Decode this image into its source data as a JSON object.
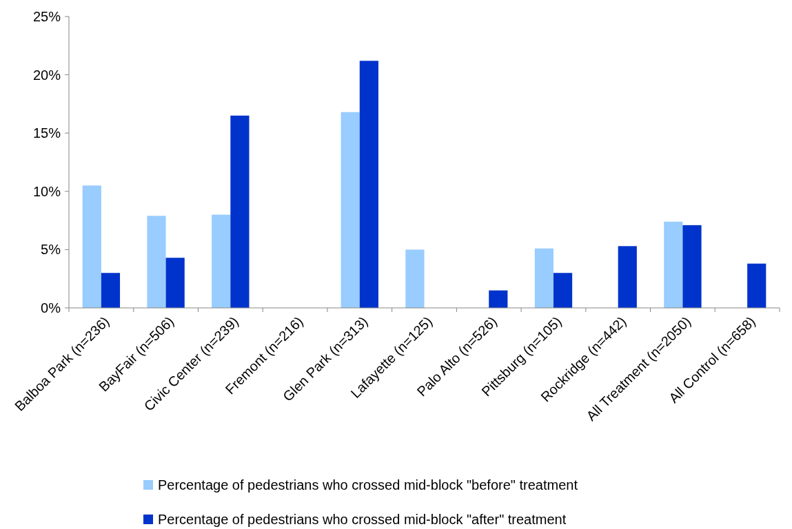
{
  "chart_data": {
    "type": "bar",
    "categories": [
      "Balboa Park (n=236)",
      "BayFair (n=506)",
      "Civic Center (n=239)",
      "Fremont (n=216)",
      "Glen Park (n=313)",
      "Lafayette (n=125)",
      "Palo Alto (n=526)",
      "Pittsburg (n=105)",
      "Rockridge (n=442)",
      "All Treatment (n=2050)",
      "All Control (n=658)"
    ],
    "series": [
      {
        "name": "Percentage of pedestrians who crossed mid-block \"before\" treatment",
        "color": "#99ccff",
        "values": [
          10.5,
          7.9,
          8.0,
          0,
          16.8,
          5.0,
          0,
          5.1,
          0,
          7.4,
          0
        ]
      },
      {
        "name": "Percentage of pedestrians who crossed mid-block \"after\" treatment",
        "color": "#0033cc",
        "values": [
          3.0,
          4.3,
          16.5,
          0,
          21.2,
          0,
          1.5,
          3.0,
          5.3,
          7.1,
          3.8
        ]
      }
    ],
    "ylim": [
      0,
      25
    ],
    "yticks": [
      {
        "value": 0,
        "label": "0%"
      },
      {
        "value": 5,
        "label": "5%"
      },
      {
        "value": 10,
        "label": "10%"
      },
      {
        "value": 15,
        "label": "15%"
      },
      {
        "value": 20,
        "label": "20%"
      },
      {
        "value": 25,
        "label": "25%"
      }
    ],
    "legend": "bottom"
  }
}
